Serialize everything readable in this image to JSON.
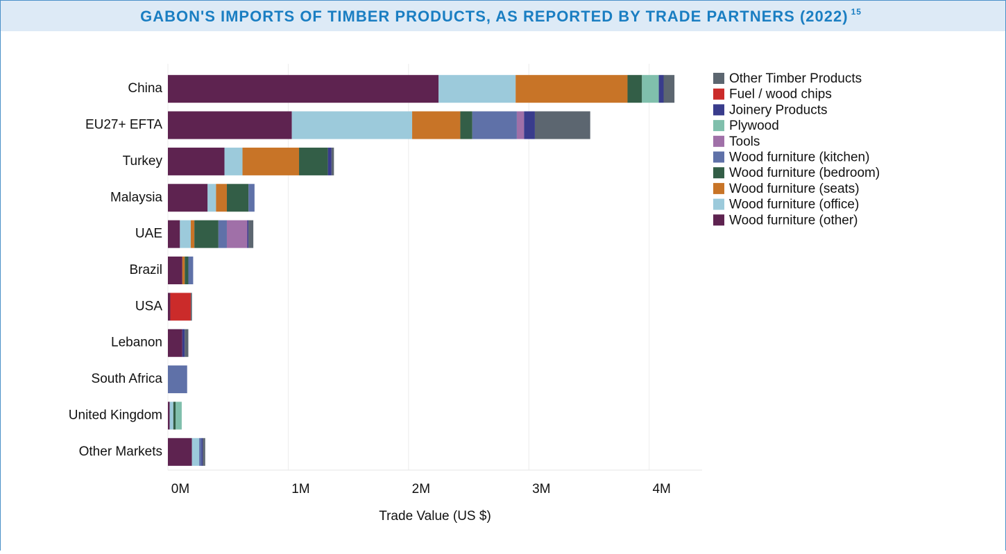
{
  "chart_data": {
    "type": "stacked_barh",
    "title": "GABON'S IMPORTS OF TIMBER PRODUCTS, AS REPORTED BY TRADE PARTNERS (2022)",
    "title_note": "15",
    "xlabel": "Trade Value (US $)",
    "categories": [
      "China",
      "EU27+ EFTA",
      "Turkey",
      "Malaysia",
      "UAE",
      "Brazil",
      "USA",
      "Lebanon",
      "South Africa",
      "United Kingdom",
      "Other Markets"
    ],
    "series": [
      {
        "name": "Wood furniture (other)",
        "color": "#5e2350",
        "values": [
          2250000,
          1030000,
          470000,
          330000,
          100000,
          120000,
          20000,
          120000,
          0,
          15000,
          200000
        ]
      },
      {
        "name": "Wood furniture (office)",
        "color": "#9ccadb",
        "values": [
          640000,
          1000000,
          150000,
          70000,
          90000,
          0,
          0,
          0,
          0,
          30000,
          60000
        ]
      },
      {
        "name": "Wood furniture (seats)",
        "color": "#c87427",
        "values": [
          930000,
          400000,
          470000,
          90000,
          30000,
          20000,
          0,
          0,
          0,
          0,
          0
        ]
      },
      {
        "name": "Wood furniture (bedroom)",
        "color": "#335e47",
        "values": [
          120000,
          100000,
          240000,
          180000,
          200000,
          30000,
          0,
          0,
          0,
          20000,
          0
        ]
      },
      {
        "name": "Wood furniture (kitchen)",
        "color": "#5f71a8",
        "values": [
          0,
          370000,
          0,
          50000,
          70000,
          40000,
          0,
          0,
          160000,
          0,
          20000
        ]
      },
      {
        "name": "Tools",
        "color": "#a070a8",
        "values": [
          0,
          60000,
          0,
          0,
          170000,
          0,
          0,
          0,
          0,
          0,
          0
        ]
      },
      {
        "name": "Plywood",
        "color": "#80bfac",
        "values": [
          140000,
          0,
          0,
          0,
          0,
          0,
          0,
          0,
          0,
          50000,
          0
        ]
      },
      {
        "name": "Joinery Products",
        "color": "#393c8c",
        "values": [
          40000,
          90000,
          30000,
          0,
          10000,
          0,
          0,
          20000,
          0,
          0,
          10000
        ]
      },
      {
        "name": "Fuel / wood chips",
        "color": "#cb2b2a",
        "values": [
          0,
          0,
          0,
          0,
          0,
          0,
          170000,
          0,
          0,
          0,
          0
        ]
      },
      {
        "name": "Other Timber Products",
        "color": "#5c6670",
        "values": [
          90000,
          460000,
          20000,
          0,
          40000,
          0,
          10000,
          30000,
          0,
          0,
          20000
        ]
      }
    ],
    "xlim": [
      0,
      4440000
    ],
    "xticks": [
      {
        "value": 0,
        "label": "0M"
      },
      {
        "value": 1000000,
        "label": "1M"
      },
      {
        "value": 2000000,
        "label": "2M"
      },
      {
        "value": 3000000,
        "label": "3M"
      },
      {
        "value": 4000000,
        "label": "4M"
      }
    ],
    "grid": true
  }
}
